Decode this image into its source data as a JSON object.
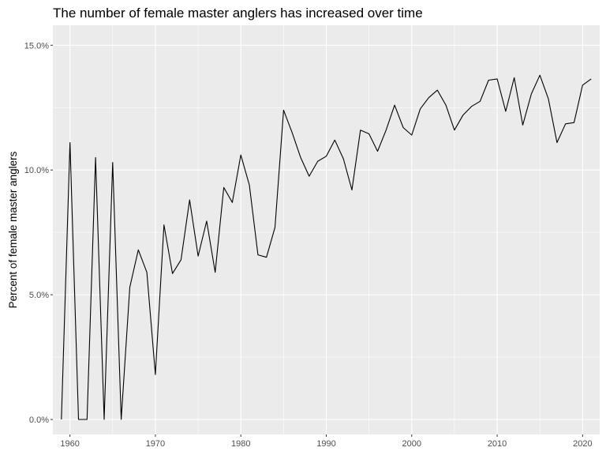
{
  "chart_data": {
    "type": "line",
    "title": "The number of female master anglers has increased over time",
    "xlabel": "",
    "ylabel": "Percent of female master anglers",
    "xlim": [
      1958,
      2022
    ],
    "ylim": [
      -0.6,
      15.8
    ],
    "x_ticks": [
      1960,
      1970,
      1980,
      1990,
      2000,
      2010,
      2020
    ],
    "x_tick_labels": [
      "1960",
      "1970",
      "1980",
      "1990",
      "2000",
      "2010",
      "2020"
    ],
    "y_ticks": [
      0,
      5,
      10,
      15
    ],
    "y_tick_labels": [
      "0.0%",
      "5.0%",
      "10.0%",
      "15.0%"
    ],
    "grid": true,
    "legend": "none",
    "colors": {
      "panel": "#ebebeb",
      "grid": "#ffffff",
      "line": "#000000"
    },
    "series": [
      {
        "x": [
          1959,
          1960,
          1961,
          1962,
          1963,
          1964,
          1965,
          1966,
          1967,
          1968,
          1969,
          1970,
          1971,
          1972,
          1973,
          1974,
          1975,
          1976,
          1977,
          1978,
          1979,
          1980,
          1981,
          1982,
          1983,
          1984,
          1985,
          1986,
          1987,
          1988,
          1989,
          1990,
          1991,
          1992,
          1993,
          1994,
          1995,
          1996,
          1997,
          1998,
          1999,
          2000,
          2001,
          2002,
          2003,
          2004,
          2005,
          2006,
          2007,
          2008,
          2009,
          2010,
          2011,
          2012,
          2013,
          2014,
          2015,
          2016,
          2017,
          2018,
          2019,
          2020,
          2021
        ],
        "values": [
          0.0,
          11.1,
          0.0,
          0.0,
          10.5,
          0.0,
          10.3,
          0.0,
          5.3,
          6.8,
          5.9,
          1.8,
          7.8,
          5.85,
          6.4,
          8.8,
          6.55,
          7.95,
          5.9,
          9.3,
          8.7,
          10.6,
          9.4,
          6.6,
          6.5,
          7.7,
          12.4,
          11.5,
          10.5,
          9.75,
          10.35,
          10.55,
          11.2,
          10.45,
          9.2,
          11.6,
          11.45,
          10.75,
          11.6,
          12.6,
          11.7,
          11.4,
          12.45,
          12.9,
          13.2,
          12.6,
          11.6,
          12.2,
          12.55,
          12.75,
          13.6,
          13.65,
          12.35,
          13.7,
          11.8,
          13.05,
          13.8,
          12.85,
          11.1,
          11.85,
          11.9,
          13.4,
          13.65
        ]
      }
    ]
  }
}
